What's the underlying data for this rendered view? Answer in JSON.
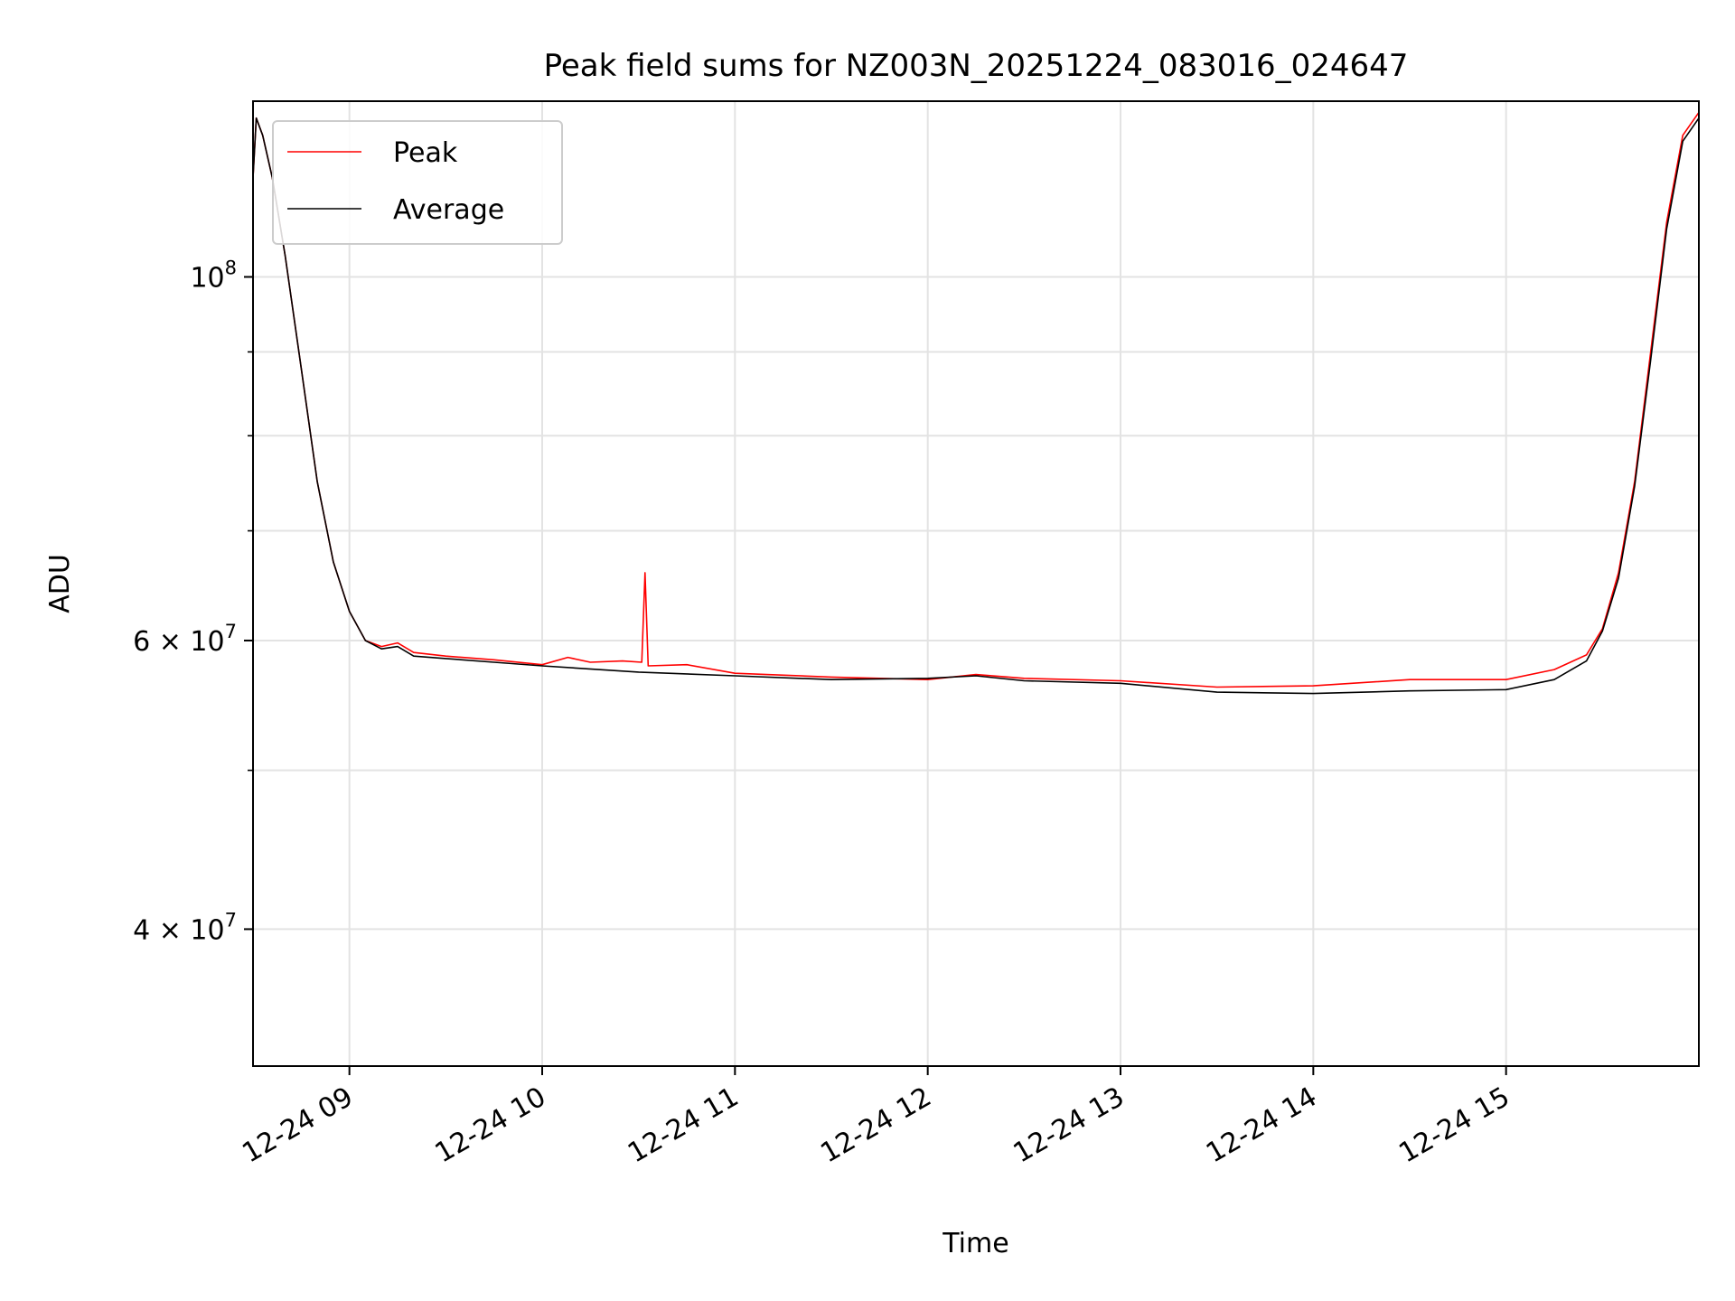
{
  "chart_data": {
    "type": "line",
    "title": "Peak field sums for NZ003N_20251224_083016_024647",
    "xlabel": "Time",
    "ylabel": "ADU",
    "x_scale": "time",
    "y_scale": "log",
    "grid": true,
    "legend_position": "top-left",
    "xlim": [
      "2025-12-24 08:30",
      "2025-12-24 16:00"
    ],
    "ylim": [
      33000000,
      128000000
    ],
    "x_ticks": [
      {
        "value": "2025-12-24 09:00",
        "label": "12-24 09"
      },
      {
        "value": "2025-12-24 10:00",
        "label": "12-24 10"
      },
      {
        "value": "2025-12-24 11:00",
        "label": "12-24 11"
      },
      {
        "value": "2025-12-24 12:00",
        "label": "12-24 12"
      },
      {
        "value": "2025-12-24 13:00",
        "label": "12-24 13"
      },
      {
        "value": "2025-12-24 14:00",
        "label": "12-24 14"
      },
      {
        "value": "2025-12-24 15:00",
        "label": "12-24 15"
      }
    ],
    "y_major_ticks": [
      {
        "value": 100000000,
        "base": "10",
        "exp": "8"
      },
      {
        "value": 60000000,
        "base": "6 × 10",
        "exp": "7"
      },
      {
        "value": 40000000,
        "base": "4 × 10",
        "exp": "7"
      }
    ],
    "y_minor_ticks": [
      90000000,
      80000000,
      70000000,
      50000000
    ],
    "series": [
      {
        "name": "Peak",
        "color": "#ff0000",
        "x": [
          "2025-12-24 08:30",
          "2025-12-24 08:31",
          "2025-12-24 08:33",
          "2025-12-24 08:36",
          "2025-12-24 08:40",
          "2025-12-24 08:45",
          "2025-12-24 08:50",
          "2025-12-24 08:55",
          "2025-12-24 09:00",
          "2025-12-24 09:05",
          "2025-12-24 09:10",
          "2025-12-24 09:15",
          "2025-12-24 09:20",
          "2025-12-24 09:30",
          "2025-12-24 09:45",
          "2025-12-24 10:00",
          "2025-12-24 10:08",
          "2025-12-24 10:15",
          "2025-12-24 10:25",
          "2025-12-24 10:31",
          "2025-12-24 10:32",
          "2025-12-24 10:33",
          "2025-12-24 10:45",
          "2025-12-24 11:00",
          "2025-12-24 11:30",
          "2025-12-24 12:00",
          "2025-12-24 12:15",
          "2025-12-24 12:30",
          "2025-12-24 13:00",
          "2025-12-24 13:30",
          "2025-12-24 14:00",
          "2025-12-24 14:30",
          "2025-12-24 15:00",
          "2025-12-24 15:15",
          "2025-12-24 15:25",
          "2025-12-24 15:30",
          "2025-12-24 15:35",
          "2025-12-24 15:40",
          "2025-12-24 15:45",
          "2025-12-24 15:50",
          "2025-12-24 15:55",
          "2025-12-24 16:00"
        ],
        "y": [
          115000000,
          125000000,
          122000000,
          115000000,
          103000000,
          88000000,
          75000000,
          67000000,
          62500000,
          60000000,
          59500000,
          59800000,
          59000000,
          58700000,
          58400000,
          58000000,
          58600000,
          58200000,
          58300000,
          58200000,
          66000000,
          57900000,
          58000000,
          57300000,
          57000000,
          56800000,
          57200000,
          56900000,
          56700000,
          56200000,
          56300000,
          56800000,
          56800000,
          57600000,
          58800000,
          61000000,
          66000000,
          75000000,
          90000000,
          108000000,
          122000000,
          126000000
        ]
      },
      {
        "name": "Average",
        "color": "#000000",
        "x": [
          "2025-12-24 08:30",
          "2025-12-24 08:31",
          "2025-12-24 08:33",
          "2025-12-24 08:36",
          "2025-12-24 08:40",
          "2025-12-24 08:45",
          "2025-12-24 08:50",
          "2025-12-24 08:55",
          "2025-12-24 09:00",
          "2025-12-24 09:05",
          "2025-12-24 09:10",
          "2025-12-24 09:15",
          "2025-12-24 09:20",
          "2025-12-24 09:30",
          "2025-12-24 09:45",
          "2025-12-24 10:00",
          "2025-12-24 10:30",
          "2025-12-24 11:00",
          "2025-12-24 11:30",
          "2025-12-24 12:00",
          "2025-12-24 12:15",
          "2025-12-24 12:30",
          "2025-12-24 13:00",
          "2025-12-24 13:30",
          "2025-12-24 14:00",
          "2025-12-24 14:30",
          "2025-12-24 15:00",
          "2025-12-24 15:15",
          "2025-12-24 15:25",
          "2025-12-24 15:30",
          "2025-12-24 15:35",
          "2025-12-24 15:40",
          "2025-12-24 15:45",
          "2025-12-24 15:50",
          "2025-12-24 15:55",
          "2025-12-24 16:00"
        ],
        "y": [
          115000000,
          125000000,
          122000000,
          115000000,
          103000000,
          88000000,
          75000000,
          67000000,
          62500000,
          60000000,
          59300000,
          59500000,
          58700000,
          58500000,
          58200000,
          57900000,
          57400000,
          57100000,
          56800000,
          56900000,
          57100000,
          56700000,
          56500000,
          55800000,
          55700000,
          55900000,
          56000000,
          56800000,
          58300000,
          60800000,
          65500000,
          74500000,
          89000000,
          107000000,
          121000000,
          125000000
        ]
      }
    ]
  }
}
